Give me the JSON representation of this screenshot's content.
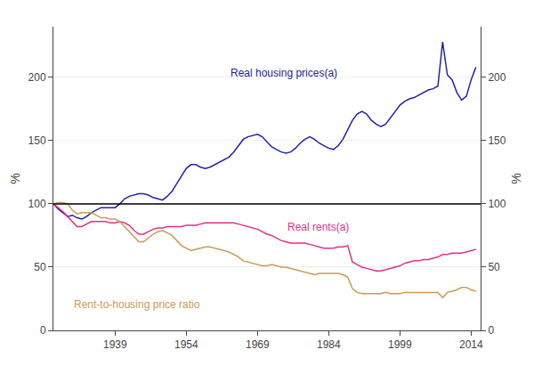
{
  "chart_data": {
    "type": "line",
    "ylabel": "%",
    "y2label": "%",
    "xlim": [
      1926,
      2016
    ],
    "xticks": [
      1939,
      1954,
      1969,
      1984,
      1999,
      2014
    ],
    "ylim": [
      0,
      240
    ],
    "yticks": [
      0,
      50,
      100,
      150,
      200
    ],
    "y2lim": [
      0,
      240
    ],
    "y2ticks": [
      0,
      50,
      100,
      150,
      200
    ],
    "grid": true,
    "reference_line": 100,
    "x": [
      1926,
      1927,
      1928,
      1929,
      1930,
      1931,
      1932,
      1933,
      1934,
      1935,
      1936,
      1937,
      1938,
      1939,
      1940,
      1941,
      1942,
      1943,
      1944,
      1945,
      1946,
      1947,
      1948,
      1949,
      1950,
      1951,
      1952,
      1953,
      1954,
      1955,
      1956,
      1957,
      1958,
      1959,
      1960,
      1961,
      1962,
      1963,
      1964,
      1965,
      1966,
      1967,
      1968,
      1969,
      1970,
      1971,
      1972,
      1973,
      1974,
      1975,
      1976,
      1977,
      1978,
      1979,
      1980,
      1981,
      1982,
      1983,
      1984,
      1985,
      1986,
      1987,
      1988,
      1989,
      1990,
      1991,
      1992,
      1993,
      1994,
      1995,
      1996,
      1997,
      1998,
      1999,
      2000,
      2001,
      2002,
      2003,
      2004,
      2005,
      2006,
      2007,
      2008,
      2009,
      2010,
      2011,
      2012,
      2013,
      2014,
      2015
    ],
    "series": [
      {
        "name": "Real housing prices(a)",
        "color": "#2222aa",
        "values": [
          100,
          96,
          93,
          90,
          91,
          89,
          88,
          90,
          93,
          95,
          97,
          97,
          97,
          97,
          100,
          104,
          106,
          107,
          108,
          108,
          107,
          105,
          104,
          103,
          106,
          110,
          116,
          122,
          128,
          131,
          131,
          129,
          128,
          129,
          131,
          133,
          135,
          137,
          141,
          146,
          151,
          153,
          154,
          155,
          153,
          149,
          145,
          143,
          141,
          140,
          141,
          144,
          148,
          151,
          153,
          151,
          148,
          146,
          144,
          143,
          146,
          151,
          159,
          166,
          171,
          173,
          171,
          166,
          163,
          161,
          163,
          168,
          173,
          178,
          181,
          183,
          184,
          186,
          188,
          190,
          191,
          193,
          228,
          202,
          198,
          188,
          182,
          185,
          198,
          208
        ]
      },
      {
        "name": "Real rents(a)",
        "color": "#dd3388",
        "values": [
          100,
          97,
          94,
          90,
          86,
          82,
          82,
          84,
          86,
          86,
          86,
          86,
          85,
          85,
          86,
          85,
          83,
          79,
          76,
          76,
          78,
          80,
          81,
          81,
          82,
          82,
          82,
          82,
          83,
          83,
          83,
          84,
          85,
          85,
          85,
          85,
          85,
          85,
          85,
          84,
          83,
          82,
          81,
          80,
          78,
          76,
          75,
          73,
          71,
          70,
          69,
          69,
          69,
          69,
          68,
          67,
          66,
          65,
          65,
          65,
          66,
          66,
          67,
          54,
          52,
          50,
          49,
          48,
          47,
          47,
          48,
          49,
          50,
          51,
          53,
          54,
          55,
          55,
          56,
          56,
          57,
          58,
          60,
          60,
          61,
          61,
          61,
          62,
          63,
          64
        ]
      },
      {
        "name": "Rent-to-housing price ratio",
        "color": "#cc9955",
        "values": [
          100,
          101,
          101,
          100,
          95,
          92,
          93,
          93,
          93,
          91,
          89,
          89,
          88,
          88,
          86,
          82,
          78,
          74,
          70,
          70,
          73,
          76,
          78,
          79,
          77,
          75,
          71,
          67,
          65,
          63,
          64,
          65,
          66,
          66,
          65,
          64,
          63,
          62,
          60,
          58,
          55,
          54,
          53,
          52,
          51,
          51,
          52,
          51,
          50,
          50,
          49,
          48,
          47,
          46,
          45,
          44,
          45,
          45,
          45,
          45,
          45,
          44,
          42,
          33,
          30,
          29,
          29,
          29,
          29,
          29,
          30,
          29,
          29,
          29,
          30,
          30,
          30,
          30,
          30,
          30,
          30,
          30,
          26,
          30,
          31,
          32,
          34,
          34,
          32,
          31
        ]
      }
    ]
  }
}
